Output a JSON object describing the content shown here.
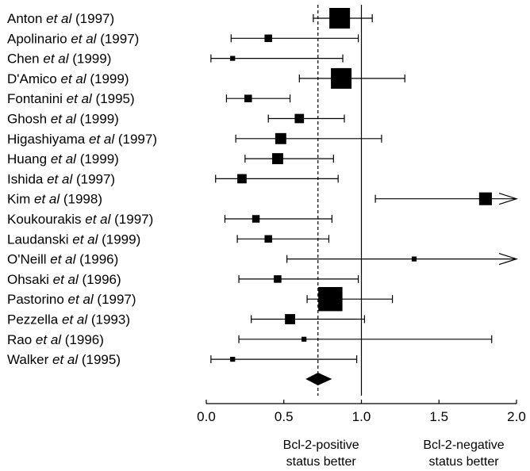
{
  "chart_data": {
    "type": "forest",
    "xlim": [
      0,
      2
    ],
    "x_ticks": [
      "0.0",
      "0.5",
      "1.0",
      "1.5",
      "2.0"
    ],
    "reference_line": 1.0,
    "pooled_line": 0.72,
    "studies": [
      {
        "author": "Anton",
        "etal": "et al",
        "year": "(1997)",
        "estimate": 0.86,
        "lower": 0.69,
        "upper": 1.07,
        "weight": 1.0,
        "arrow": false
      },
      {
        "author": "Apolinario",
        "etal": "et al",
        "year": "(1997)",
        "estimate": 0.4,
        "lower": 0.16,
        "upper": 0.98,
        "weight": 0.25,
        "arrow": false
      },
      {
        "author": "Chen",
        "etal": "et al",
        "year": "(1999)",
        "estimate": 0.17,
        "lower": 0.03,
        "upper": 0.88,
        "weight": 0.1,
        "arrow": false
      },
      {
        "author": "D'Amico",
        "etal": "et al",
        "year": "(1999)",
        "estimate": 0.87,
        "lower": 0.6,
        "upper": 1.28,
        "weight": 1.0,
        "arrow": false
      },
      {
        "author": "Fontanini",
        "etal": "et al",
        "year": "(1995)",
        "estimate": 0.27,
        "lower": 0.13,
        "upper": 0.54,
        "weight": 0.25,
        "arrow": false
      },
      {
        "author": "Ghosh",
        "etal": "et al",
        "year": "(1999)",
        "estimate": 0.6,
        "lower": 0.4,
        "upper": 0.89,
        "weight": 0.35,
        "arrow": false
      },
      {
        "author": "Higashiyama",
        "etal": "et al",
        "year": "(1997)",
        "estimate": 0.48,
        "lower": 0.19,
        "upper": 1.13,
        "weight": 0.45,
        "arrow": false
      },
      {
        "author": "Huang",
        "etal": "et al",
        "year": "(1999)",
        "estimate": 0.46,
        "lower": 0.25,
        "upper": 0.82,
        "weight": 0.45,
        "arrow": false
      },
      {
        "author": "Ishida",
        "etal": "et al",
        "year": "(1997)",
        "estimate": 0.23,
        "lower": 0.06,
        "upper": 0.85,
        "weight": 0.35,
        "arrow": false
      },
      {
        "author": "Kim",
        "etal": "et al",
        "year": "(1998)",
        "estimate": 1.8,
        "lower": 1.09,
        "upper": 2.0,
        "weight": 0.55,
        "arrow": true
      },
      {
        "author": "Koukourakis",
        "etal": "et al",
        "year": "(1997)",
        "estimate": 0.32,
        "lower": 0.12,
        "upper": 0.81,
        "weight": 0.25,
        "arrow": false
      },
      {
        "author": "Laudanski",
        "etal": "et al",
        "year": "(1999)",
        "estimate": 0.4,
        "lower": 0.2,
        "upper": 0.79,
        "weight": 0.25,
        "arrow": false
      },
      {
        "author": "O'Neill",
        "etal": "et al",
        "year": "(1996)",
        "estimate": 1.34,
        "lower": 0.52,
        "upper": 2.0,
        "weight": 0.1,
        "arrow": true
      },
      {
        "author": "Ohsaki",
        "etal": "et al",
        "year": "(1996)",
        "estimate": 0.46,
        "lower": 0.21,
        "upper": 0.98,
        "weight": 0.25,
        "arrow": false
      },
      {
        "author": "Pastorino",
        "etal": "et al",
        "year": "(1997)",
        "estimate": 0.8,
        "lower": 0.65,
        "upper": 1.2,
        "weight": 1.2,
        "arrow": false
      },
      {
        "author": "Pezzella",
        "etal": "et al",
        "year": "(1993)",
        "estimate": 0.54,
        "lower": 0.29,
        "upper": 1.02,
        "weight": 0.4,
        "arrow": false
      },
      {
        "author": "Rao",
        "etal": "et al",
        "year": "(1996)",
        "estimate": 0.63,
        "lower": 0.21,
        "upper": 1.84,
        "weight": 0.1,
        "arrow": false
      },
      {
        "author": "Walker",
        "etal": "et al",
        "year": "(1995)",
        "estimate": 0.17,
        "lower": 0.03,
        "upper": 0.97,
        "weight": 0.1,
        "arrow": false
      }
    ],
    "pooled": {
      "estimate": 0.72,
      "lower": 0.64,
      "upper": 0.81
    },
    "captions": {
      "left": [
        "Bcl-2-positive",
        "status better"
      ],
      "right": [
        "Bcl-2-negative",
        "status better"
      ]
    }
  }
}
